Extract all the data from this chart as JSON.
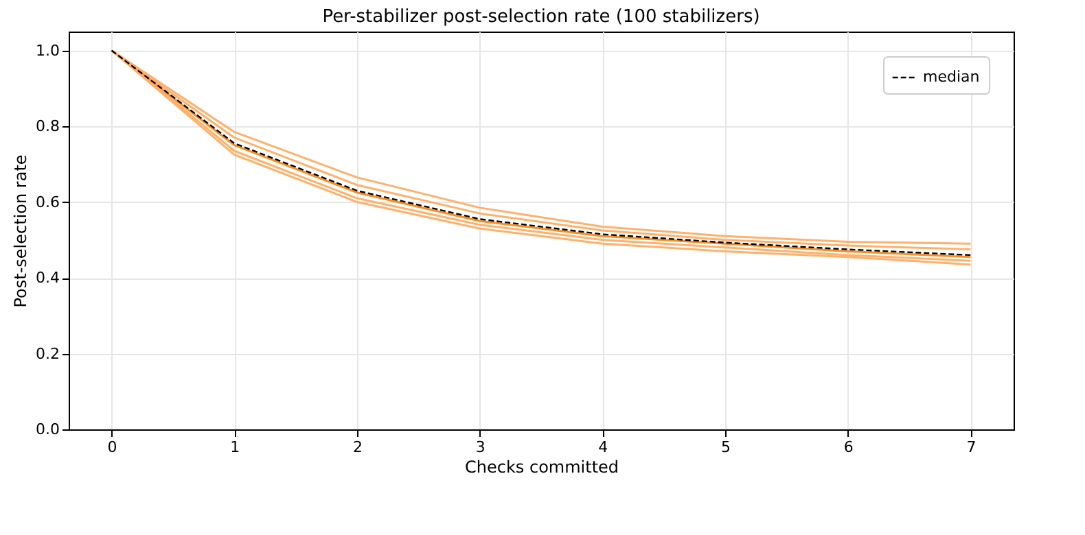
{
  "chart_data": {
    "type": "line",
    "title": "Per-stabilizer post-selection rate (100 stabilizers)",
    "xlabel": "Checks committed",
    "ylabel": "Post-selection rate",
    "x": [
      0,
      1,
      2,
      3,
      4,
      5,
      6,
      7
    ],
    "series": [
      {
        "color": "#ffb06a",
        "values": [
          1.0,
          0.785,
          0.665,
          0.585,
          0.535,
          0.51,
          0.495,
          0.49
        ]
      },
      {
        "color": "#ffb06a",
        "values": [
          1.0,
          0.77,
          0.645,
          0.57,
          0.525,
          0.5,
          0.485,
          0.475
        ]
      },
      {
        "color": "#ff8c1a",
        "values": [
          1.0,
          0.75,
          0.625,
          0.55,
          0.51,
          0.49,
          0.47,
          0.455
        ]
      },
      {
        "color": "#ffb06a",
        "values": [
          1.0,
          0.735,
          0.61,
          0.54,
          0.5,
          0.48,
          0.46,
          0.445
        ]
      },
      {
        "color": "#ffb06a",
        "values": [
          1.0,
          0.725,
          0.6,
          0.53,
          0.49,
          0.47,
          0.455,
          0.435
        ]
      },
      {
        "name": "median",
        "color": "#000000",
        "line_style": "dashed",
        "values": [
          1.0,
          0.755,
          0.63,
          0.555,
          0.515,
          0.493,
          0.475,
          0.46
        ]
      }
    ],
    "xlim": [
      -0.35,
      7.35
    ],
    "xticks": [
      0,
      1,
      2,
      3,
      4,
      5,
      6,
      7
    ],
    "ylim": [
      0,
      1.05
    ],
    "yticks": [
      {
        "value": 0,
        "label": "0.0"
      },
      0.2,
      0.4,
      0.6,
      0.8,
      {
        "value": 1,
        "label": "1.0"
      }
    ],
    "grid": true,
    "legend": "top right",
    "marker": "none"
  }
}
